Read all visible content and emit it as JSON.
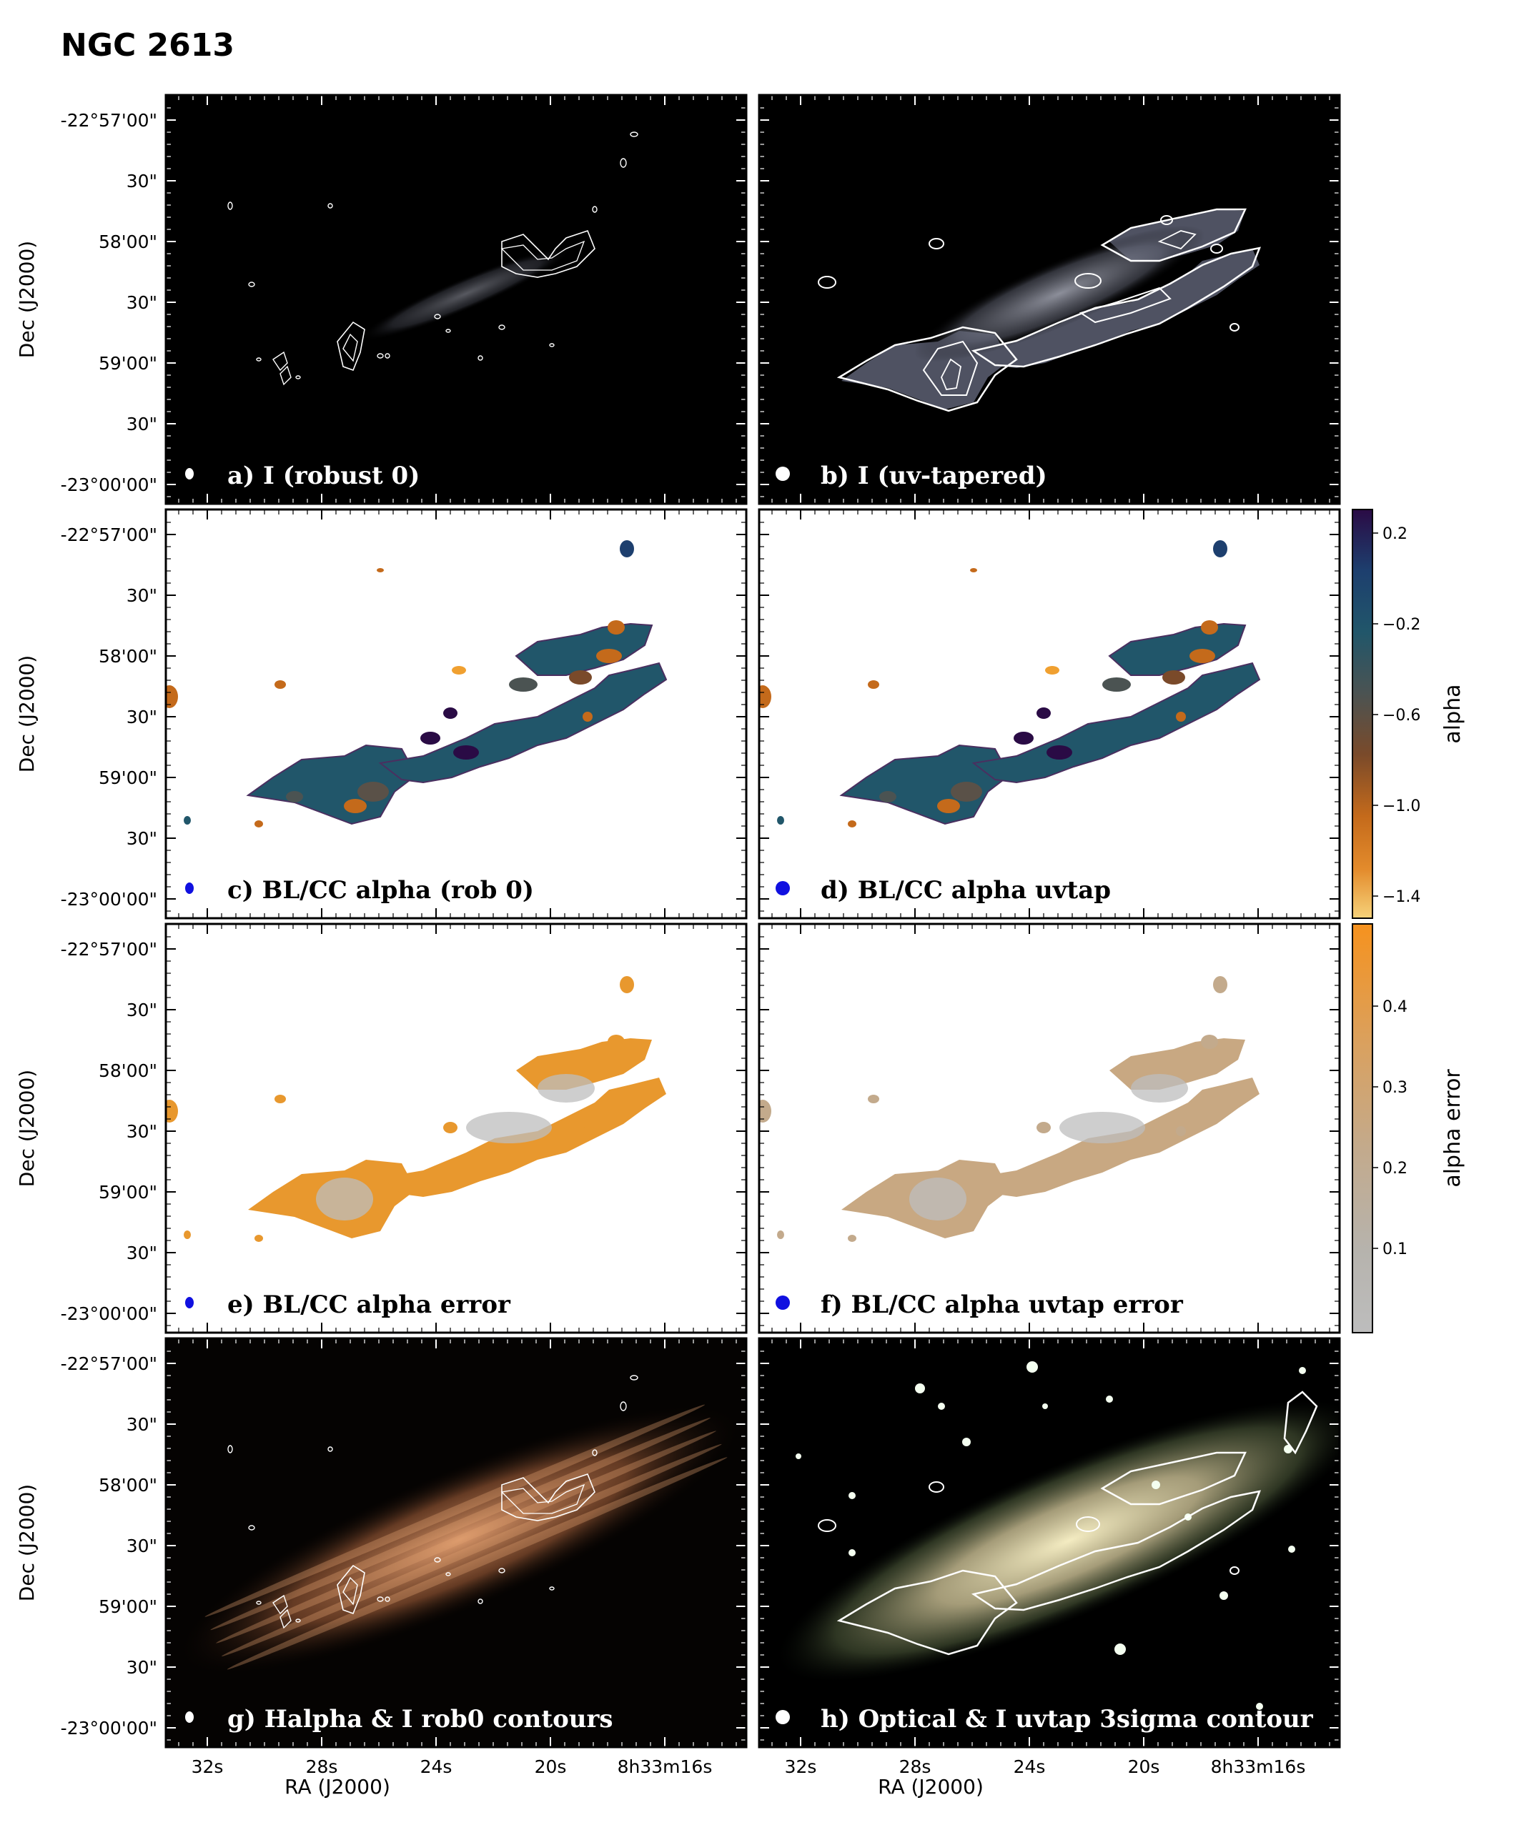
{
  "figure": {
    "title": "NGC 2613",
    "dec_ticks": [
      "-22°57'00\"",
      "30\"",
      "58'00\"",
      "30\"",
      "59'00\"",
      "30\"",
      "-23°00'00\""
    ],
    "ra_ticks": [
      "32s",
      "28s",
      "24s",
      "20s",
      "8h33m16s"
    ],
    "ylabel": "Dec (J2000)",
    "xlabel": "RA (J2000)"
  },
  "panels": [
    {
      "id": "a",
      "label": "a) I (robust 0)",
      "style": "radio-robust",
      "beam": "white-small"
    },
    {
      "id": "b",
      "label": "b) I (uv-tapered)",
      "style": "radio-uvtap",
      "beam": "white-large"
    },
    {
      "id": "c",
      "label": "c) BL/CC alpha (rob 0)",
      "style": "alpha-robust",
      "beam": "blue-small"
    },
    {
      "id": "d",
      "label": "d) BL/CC alpha uvtap",
      "style": "alpha-uvtap",
      "beam": "blue-large"
    },
    {
      "id": "e",
      "label": "e)  BL/CC alpha error",
      "style": "error-robust",
      "beam": "blue-small"
    },
    {
      "id": "f",
      "label": "f) BL/CC alpha uvtap error",
      "style": "error-uvtap",
      "beam": "blue-large"
    },
    {
      "id": "g",
      "label": "g) Halpha & I rob0 contours",
      "style": "halpha",
      "beam": "white-small"
    },
    {
      "id": "h",
      "label": "h) Optical & I uvtap 3sigma contour",
      "style": "optical",
      "beam": "white-large"
    }
  ],
  "colorbars": [
    {
      "label": "alpha",
      "ticks": [
        "0.2",
        "−0.2",
        "−0.6",
        "−1.0",
        "−1.4"
      ],
      "colors": [
        "#2a0b45",
        "#1d3f6e",
        "#21566a",
        "#4b5352",
        "#7a4a2a",
        "#c46a1b",
        "#e38b2c",
        "#f6d27a"
      ]
    },
    {
      "label": "alpha error",
      "ticks": [
        "0.4",
        "0.3",
        "0.2",
        "0.1"
      ],
      "colors": [
        "#f6921e",
        "#d9a160",
        "#c3aa8c",
        "#b6b3ad",
        "#bdbdbd"
      ]
    }
  ]
}
